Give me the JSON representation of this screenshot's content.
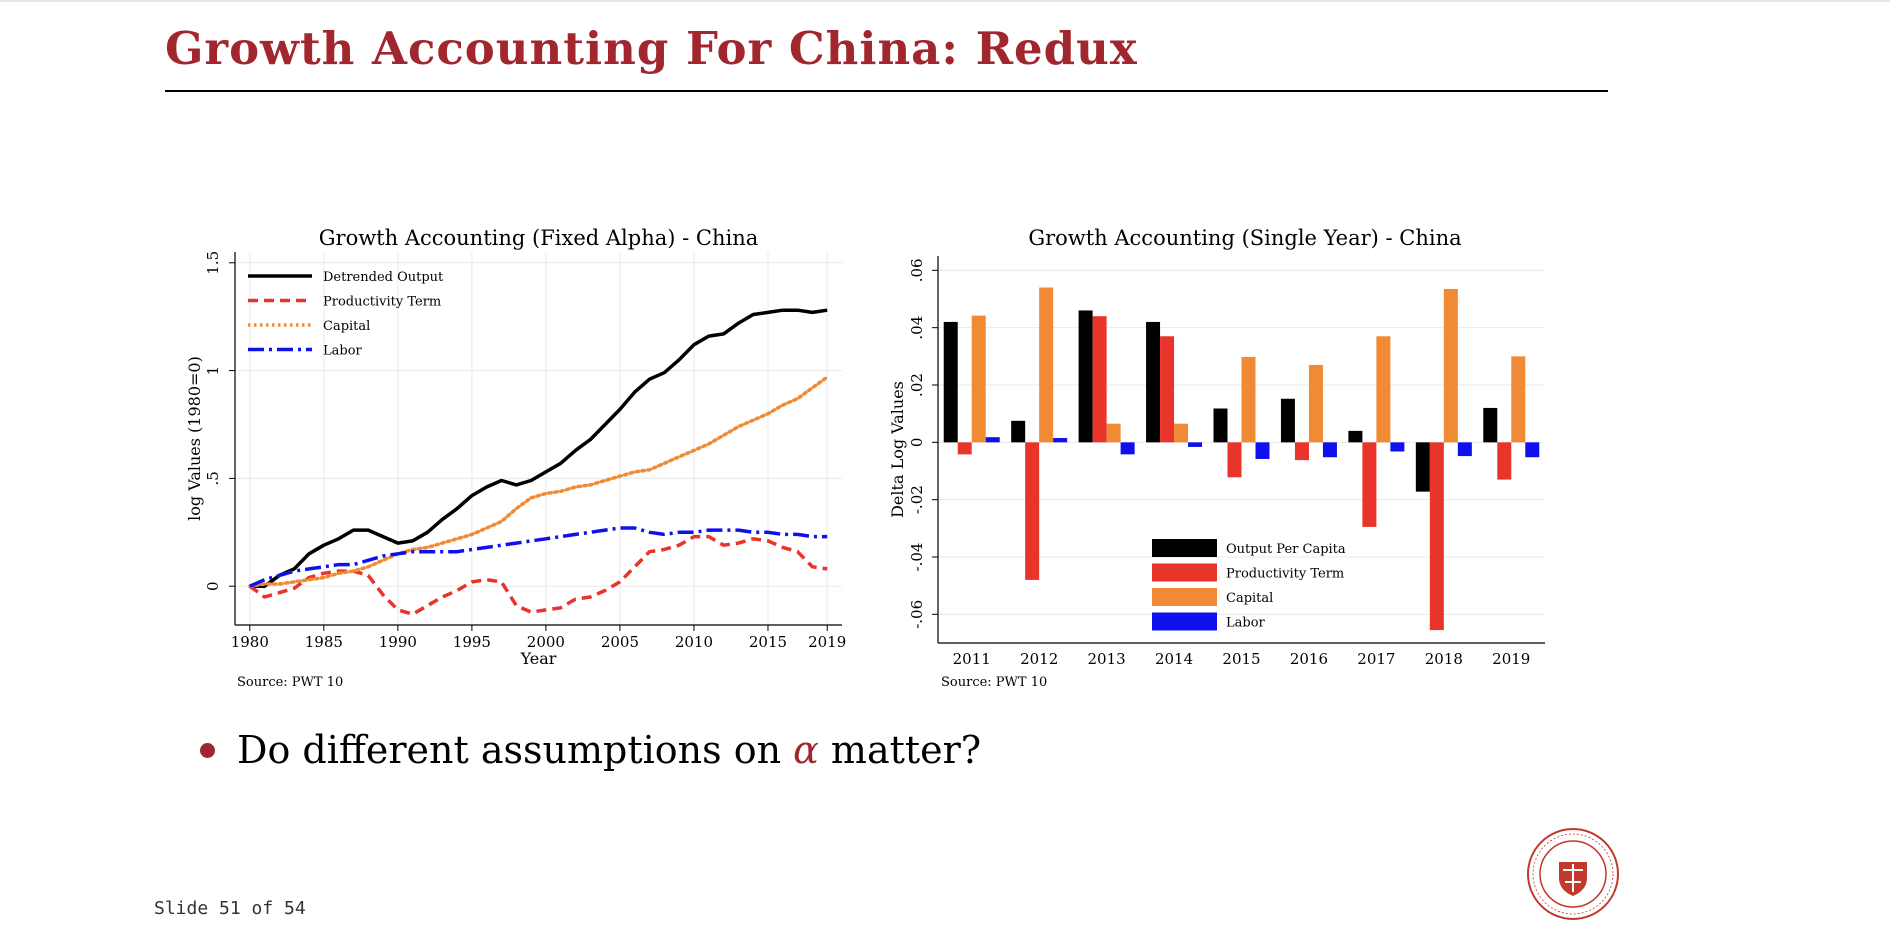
{
  "slide": {
    "title": "Growth Accounting For China: Redux",
    "bullet_before": "Do different assumptions on",
    "bullet_symbol": "α",
    "bullet_after": "matter?",
    "slide_number": "Slide 51 of 54",
    "accent_color": "#a1262d",
    "seal_icon": "carnegie-mellon-seal"
  },
  "chart_data": [
    {
      "type": "line",
      "title": "Growth Accounting (Fixed Alpha) - China",
      "xlabel": "Year",
      "ylabel": "log Values (1980=0)",
      "xlim": [
        1979,
        2020
      ],
      "ylim": [
        -0.18,
        1.55
      ],
      "x_ticks": [
        "1980",
        "1985",
        "1990",
        "1995",
        "2000",
        "2005",
        "2010",
        "2015",
        "2019"
      ],
      "y_ticks": [
        "0",
        ".5",
        "1",
        "1.5"
      ],
      "grid": true,
      "legend_position": "top-left",
      "source": "Source: PWT 10",
      "x": [
        1980,
        1981,
        1982,
        1983,
        1984,
        1985,
        1986,
        1987,
        1988,
        1989,
        1990,
        1991,
        1992,
        1993,
        1994,
        1995,
        1996,
        1997,
        1998,
        1999,
        2000,
        2001,
        2002,
        2003,
        2004,
        2005,
        2006,
        2007,
        2008,
        2009,
        2010,
        2011,
        2012,
        2013,
        2014,
        2015,
        2016,
        2017,
        2018,
        2019
      ],
      "series": [
        {
          "name": "Detrended Output",
          "color": "#000000",
          "style": "solid",
          "values": [
            0,
            0,
            0.05,
            0.08,
            0.15,
            0.19,
            0.22,
            0.26,
            0.26,
            0.23,
            0.2,
            0.21,
            0.25,
            0.31,
            0.36,
            0.42,
            0.46,
            0.49,
            0.47,
            0.49,
            0.53,
            0.57,
            0.63,
            0.68,
            0.75,
            0.82,
            0.9,
            0.96,
            0.99,
            1.05,
            1.12,
            1.16,
            1.17,
            1.22,
            1.26,
            1.27,
            1.28,
            1.28,
            1.27,
            1.28
          ]
        },
        {
          "name": "Productivity Term",
          "color": "#e8342a",
          "style": "dashed",
          "values": [
            0,
            -0.05,
            -0.03,
            -0.01,
            0.04,
            0.06,
            0.07,
            0.07,
            0.05,
            -0.04,
            -0.11,
            -0.13,
            -0.09,
            -0.05,
            -0.02,
            0.02,
            0.03,
            0.02,
            -0.09,
            -0.12,
            -0.11,
            -0.1,
            -0.06,
            -0.05,
            -0.02,
            0.02,
            0.09,
            0.16,
            0.17,
            0.19,
            0.23,
            0.23,
            0.19,
            0.2,
            0.22,
            0.21,
            0.18,
            0.16,
            0.09,
            0.08
          ]
        },
        {
          "name": "Capital",
          "color": "#f08a35",
          "style": "dotted",
          "values": [
            0,
            0.01,
            0.01,
            0.02,
            0.03,
            0.04,
            0.06,
            0.07,
            0.09,
            0.12,
            0.15,
            0.17,
            0.18,
            0.2,
            0.22,
            0.24,
            0.27,
            0.3,
            0.36,
            0.41,
            0.43,
            0.44,
            0.46,
            0.47,
            0.49,
            0.51,
            0.53,
            0.54,
            0.57,
            0.6,
            0.63,
            0.66,
            0.7,
            0.74,
            0.77,
            0.8,
            0.84,
            0.87,
            0.92,
            0.97
          ]
        },
        {
          "name": "Labor",
          "color": "#1010ee",
          "style": "dashdot",
          "values": [
            0,
            0.03,
            0.05,
            0.07,
            0.08,
            0.09,
            0.1,
            0.1,
            0.12,
            0.14,
            0.15,
            0.16,
            0.16,
            0.16,
            0.16,
            0.17,
            0.18,
            0.19,
            0.2,
            0.21,
            0.22,
            0.23,
            0.24,
            0.25,
            0.26,
            0.27,
            0.27,
            0.25,
            0.24,
            0.25,
            0.25,
            0.26,
            0.26,
            0.26,
            0.25,
            0.25,
            0.24,
            0.24,
            0.23,
            0.23
          ]
        }
      ]
    },
    {
      "type": "bar",
      "title": "Growth Accounting (Single Year) - China",
      "xlabel": "",
      "ylabel": "Delta Log Values",
      "ylim": [
        -0.07,
        0.065
      ],
      "y_ticks": [
        "-.06",
        "-.04",
        "-.02",
        "0",
        ".02",
        ".04",
        ".06"
      ],
      "grid": true,
      "legend_position": "bottom-center",
      "source": "Source: PWT 10",
      "categories": [
        "2011",
        "2012",
        "2013",
        "2014",
        "2015",
        "2016",
        "2017",
        "2018",
        "2019"
      ],
      "series": [
        {
          "name": "Output Per Capita",
          "color": "#000000",
          "values": [
            0.042,
            0.0075,
            0.046,
            0.042,
            0.0118,
            0.0152,
            0.004,
            -0.0172,
            0.012
          ]
        },
        {
          "name": "Productivity Term",
          "color": "#e8342a",
          "values": [
            -0.0042,
            -0.048,
            0.044,
            0.037,
            -0.0122,
            -0.0062,
            -0.0295,
            -0.0655,
            -0.013
          ]
        },
        {
          "name": "Capital",
          "color": "#f08a35",
          "values": [
            0.0442,
            0.054,
            0.0065,
            0.0065,
            0.0298,
            0.027,
            0.037,
            0.0535,
            0.03
          ]
        },
        {
          "name": "Labor",
          "color": "#1010ee",
          "values": [
            0.0018,
            0.0015,
            -0.0042,
            -0.0016,
            -0.0058,
            -0.0052,
            -0.0032,
            -0.0048,
            -0.0052
          ]
        }
      ]
    }
  ]
}
